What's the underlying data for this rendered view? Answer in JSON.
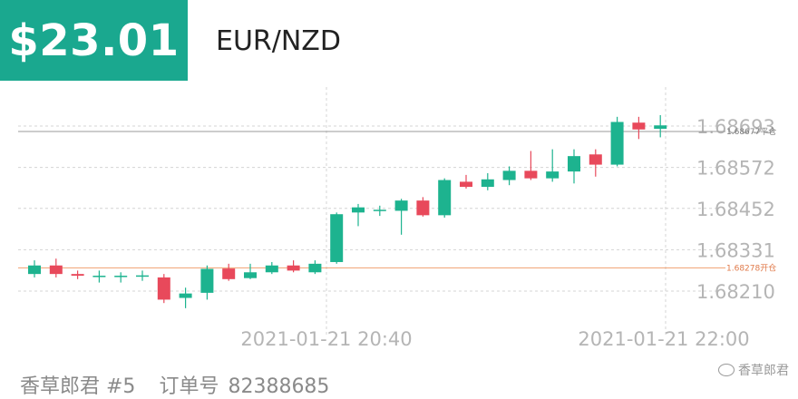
{
  "header": {
    "price": "$23.01",
    "pair": "EUR/NZD"
  },
  "footer": {
    "user": "香草郎君 #5",
    "order_label": "订单号",
    "order_number": "82388685"
  },
  "watermark": {
    "text": "香草郎君",
    "icon": "chat-bubble-icon"
  },
  "colors": {
    "up": "#1db38f",
    "down": "#e8495b",
    "badge": "#1aa88f",
    "close_line": "#9b9b9b",
    "open_line": "#f0a070"
  },
  "chart_data": {
    "type": "candlestick",
    "y_ticks": [
      "1.68693",
      "1.68572",
      "1.68452",
      "1.68331",
      "1.68210"
    ],
    "x_ticks": [
      "2021-01-21 20:40",
      "2021-01-21 22:00"
    ],
    "close_marker": {
      "value": 1.68677,
      "label": "1.68677平仓"
    },
    "open_marker": {
      "value": 1.68278,
      "label": "1.68278开仓"
    },
    "candles": [
      {
        "o": 1.6826,
        "c": 1.68285,
        "h": 1.683,
        "l": 1.6825
      },
      {
        "o": 1.68285,
        "c": 1.6826,
        "h": 1.68305,
        "l": 1.6825
      },
      {
        "o": 1.6826,
        "c": 1.68255,
        "h": 1.6827,
        "l": 1.68245
      },
      {
        "o": 1.68253,
        "c": 1.68255,
        "h": 1.6827,
        "l": 1.68235
      },
      {
        "o": 1.68253,
        "c": 1.68255,
        "h": 1.68265,
        "l": 1.68235
      },
      {
        "o": 1.68254,
        "c": 1.68256,
        "h": 1.6827,
        "l": 1.6824
      },
      {
        "o": 1.6825,
        "c": 1.68185,
        "h": 1.6826,
        "l": 1.68175
      },
      {
        "o": 1.6819,
        "c": 1.68203,
        "h": 1.6822,
        "l": 1.6816
      },
      {
        "o": 1.68205,
        "c": 1.68275,
        "h": 1.68285,
        "l": 1.68185
      },
      {
        "o": 1.68276,
        "c": 1.68245,
        "h": 1.6829,
        "l": 1.6824
      },
      {
        "o": 1.68248,
        "c": 1.68265,
        "h": 1.6829,
        "l": 1.68245
      },
      {
        "o": 1.68265,
        "c": 1.68285,
        "h": 1.68295,
        "l": 1.6826
      },
      {
        "o": 1.68285,
        "c": 1.6827,
        "h": 1.683,
        "l": 1.68265
      },
      {
        "o": 1.68265,
        "c": 1.6829,
        "h": 1.683,
        "l": 1.6826
      },
      {
        "o": 1.68295,
        "c": 1.68435,
        "h": 1.6844,
        "l": 1.6829
      },
      {
        "o": 1.6844,
        "c": 1.68455,
        "h": 1.68465,
        "l": 1.684
      },
      {
        "o": 1.68448,
        "c": 1.68448,
        "h": 1.6846,
        "l": 1.6843
      },
      {
        "o": 1.68445,
        "c": 1.68475,
        "h": 1.6848,
        "l": 1.68375
      },
      {
        "o": 1.68475,
        "c": 1.68432,
        "h": 1.68485,
        "l": 1.68428
      },
      {
        "o": 1.68432,
        "c": 1.68535,
        "h": 1.6854,
        "l": 1.68425
      },
      {
        "o": 1.6853,
        "c": 1.68515,
        "h": 1.6855,
        "l": 1.6851
      },
      {
        "o": 1.68515,
        "c": 1.68537,
        "h": 1.68555,
        "l": 1.68505
      },
      {
        "o": 1.68535,
        "c": 1.68562,
        "h": 1.68575,
        "l": 1.6852
      },
      {
        "o": 1.68562,
        "c": 1.6854,
        "h": 1.6862,
        "l": 1.68535
      },
      {
        "o": 1.6854,
        "c": 1.6856,
        "h": 1.68625,
        "l": 1.6853
      },
      {
        "o": 1.6856,
        "c": 1.68605,
        "h": 1.68625,
        "l": 1.68525
      },
      {
        "o": 1.6861,
        "c": 1.6858,
        "h": 1.68625,
        "l": 1.68545
      },
      {
        "o": 1.6858,
        "c": 1.68705,
        "h": 1.6872,
        "l": 1.68575
      },
      {
        "o": 1.68703,
        "c": 1.68683,
        "h": 1.6872,
        "l": 1.68655
      },
      {
        "o": 1.68685,
        "c": 1.68695,
        "h": 1.68725,
        "l": 1.6866
      }
    ]
  }
}
